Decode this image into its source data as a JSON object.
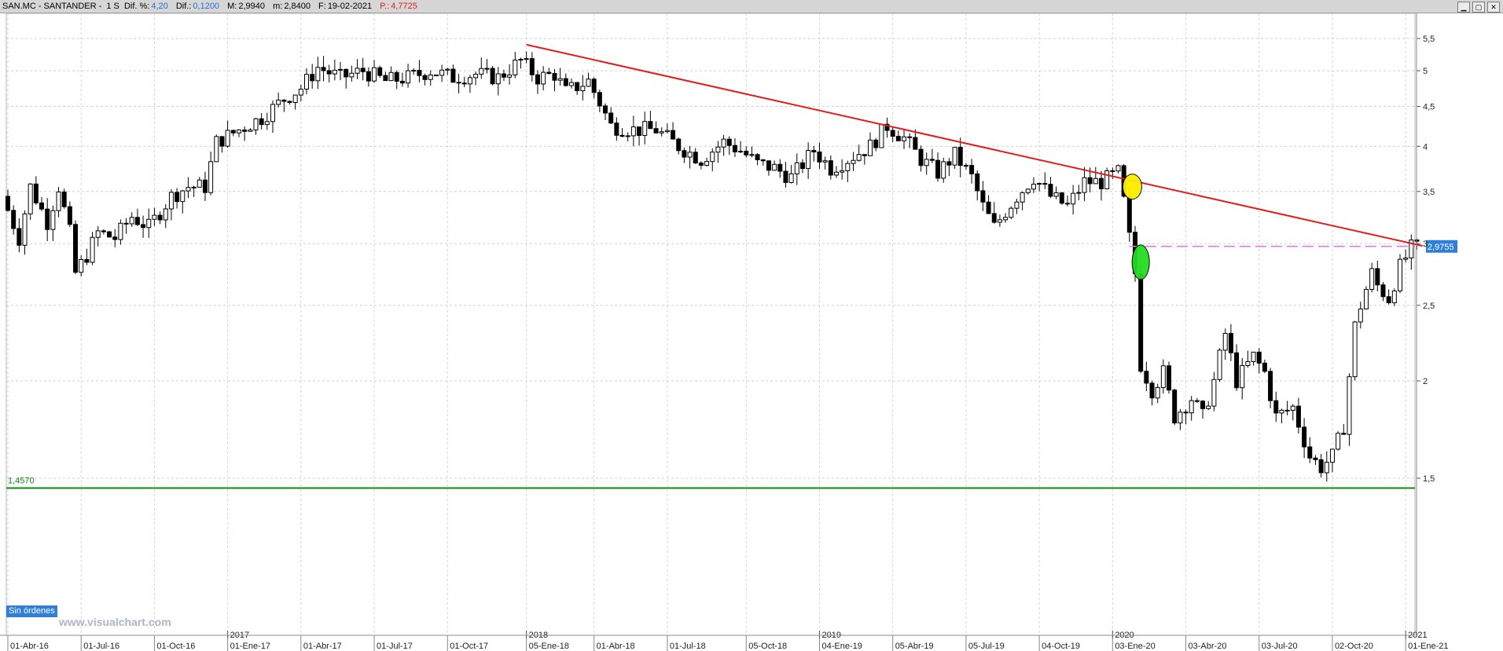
{
  "header": {
    "symbol": "SAN.MC - SANTANDER -",
    "period": "1 S",
    "dif_pct_label": "Dif. %:",
    "dif_pct": "4,20",
    "dif_label": "Dif.:",
    "dif": "0,1200",
    "max_label": "M:",
    "max": "2,9940",
    "min_label": "m:",
    "min": "2,8400",
    "date_label": "F:",
    "date": "19-02-2021",
    "p_label": "P.:",
    "p": "4,7725"
  },
  "window_buttons": [
    "▁",
    "▢",
    "✕"
  ],
  "status": {
    "orders": "Sin órdenes",
    "watermark": "www.visualchart.com"
  },
  "colors": {
    "up_body": "#ffffff",
    "down_body": "#000000",
    "trendline": "#e31b1b",
    "support": "#118811",
    "dashed": "#ef6fe6",
    "price_tag": "#2f7fd8",
    "yellow_marker": "#ffee00",
    "green_marker": "#22dd22"
  },
  "chart_data": {
    "type": "candlestick",
    "scale": "log",
    "grid": true,
    "ylim": [
      1.4,
      5.7
    ],
    "y_ticks": [
      1.5,
      2,
      2.5,
      3,
      3.5,
      4,
      4.5,
      5,
      5.5
    ],
    "y_tick_labels": [
      "1,5",
      "2",
      "2,5",
      "3",
      "3,5",
      "4",
      "4,5",
      "5",
      "5,5"
    ],
    "x_ticks": [
      "01-Abr-16",
      "01-Jul-16",
      "01-Oct-16",
      "01-Ene-17",
      "01-Abr-17",
      "01-Jul-17",
      "01-Oct-17",
      "05-Ene-18",
      "01-Abr-18",
      "01-Jul-18",
      "05-Oct-18",
      "04-Ene-19",
      "05-Abr-19",
      "05-Jul-19",
      "04-Oct-19",
      "03-Ene-20",
      "03-Abr-20",
      "03-Jul-20",
      "02-Oct-20",
      "01-Ene-21"
    ],
    "x_tick_weeks": [
      0,
      13,
      26,
      39,
      52,
      65,
      78,
      92,
      104,
      117,
      131,
      144,
      157,
      170,
      183,
      196,
      209,
      222,
      235,
      248
    ],
    "years": [
      "2017",
      "2018",
      "2019",
      "2020",
      "2021"
    ],
    "year_weeks": [
      39,
      92,
      144,
      196,
      248
    ],
    "n_weeks": 251,
    "anchors": [
      [
        0,
        3.45
      ],
      [
        3,
        3.05
      ],
      [
        5,
        3.55
      ],
      [
        8,
        3.2
      ],
      [
        10,
        3.55
      ],
      [
        12,
        3.1
      ],
      [
        13,
        2.75
      ],
      [
        15,
        2.9
      ],
      [
        17,
        3.1
      ],
      [
        20,
        3.05
      ],
      [
        23,
        3.25
      ],
      [
        26,
        3.15
      ],
      [
        30,
        3.45
      ],
      [
        33,
        3.55
      ],
      [
        36,
        3.55
      ],
      [
        38,
        4.05
      ],
      [
        42,
        4.2
      ],
      [
        46,
        4.35
      ],
      [
        50,
        4.6
      ],
      [
        53,
        4.75
      ],
      [
        56,
        5.05
      ],
      [
        60,
        4.9
      ],
      [
        64,
        5.0
      ],
      [
        68,
        4.85
      ],
      [
        72,
        4.9
      ],
      [
        76,
        5.0
      ],
      [
        80,
        4.9
      ],
      [
        84,
        4.95
      ],
      [
        88,
        4.9
      ],
      [
        92,
        5.15
      ],
      [
        95,
        4.9
      ],
      [
        98,
        4.95
      ],
      [
        100,
        4.7
      ],
      [
        104,
        4.85
      ],
      [
        106,
        4.55
      ],
      [
        108,
        4.25
      ],
      [
        112,
        4.2
      ],
      [
        116,
        4.2
      ],
      [
        120,
        4.0
      ],
      [
        124,
        3.85
      ],
      [
        128,
        4.05
      ],
      [
        131,
        3.95
      ],
      [
        134,
        3.8
      ],
      [
        137,
        3.75
      ],
      [
        140,
        3.65
      ],
      [
        144,
        3.95
      ],
      [
        147,
        3.75
      ],
      [
        150,
        3.85
      ],
      [
        154,
        4.0
      ],
      [
        157,
        4.25
      ],
      [
        160,
        4.1
      ],
      [
        163,
        3.85
      ],
      [
        166,
        3.7
      ],
      [
        169,
        3.9
      ],
      [
        172,
        3.65
      ],
      [
        174,
        3.35
      ],
      [
        176,
        3.15
      ],
      [
        178,
        3.3
      ],
      [
        180,
        3.45
      ],
      [
        183,
        3.65
      ],
      [
        186,
        3.45
      ],
      [
        189,
        3.35
      ],
      [
        192,
        3.6
      ],
      [
        195,
        3.6
      ],
      [
        198,
        3.7
      ],
      [
        199,
        3.4
      ],
      [
        200,
        3.05
      ],
      [
        201,
        2.75
      ],
      [
        202,
        2.1
      ],
      [
        204,
        1.95
      ],
      [
        206,
        2.05
      ],
      [
        208,
        1.8
      ],
      [
        211,
        1.9
      ],
      [
        213,
        1.8
      ],
      [
        215,
        2.0
      ],
      [
        217,
        2.3
      ],
      [
        219,
        2.0
      ],
      [
        222,
        2.15
      ],
      [
        224,
        2.05
      ],
      [
        226,
        1.8
      ],
      [
        229,
        1.85
      ],
      [
        232,
        1.6
      ],
      [
        234,
        1.55
      ],
      [
        236,
        1.6
      ],
      [
        238,
        1.75
      ],
      [
        240,
        2.35
      ],
      [
        241,
        2.5
      ],
      [
        243,
        2.75
      ],
      [
        244,
        2.65
      ],
      [
        246,
        2.55
      ],
      [
        248,
        2.8
      ],
      [
        250,
        2.96
      ]
    ],
    "trendline": {
      "start": [
        92,
        5.4
      ],
      "end": [
        251,
        2.98
      ]
    },
    "support": {
      "value": 1.457,
      "label": "1,4570"
    },
    "last_price": {
      "value": 2.9755,
      "label": "2,9755",
      "from_week": 199
    },
    "markers": [
      {
        "week": 199.5,
        "value": 3.55,
        "color": "yellow"
      },
      {
        "week": 201,
        "value": 2.84,
        "color": "green"
      }
    ]
  }
}
